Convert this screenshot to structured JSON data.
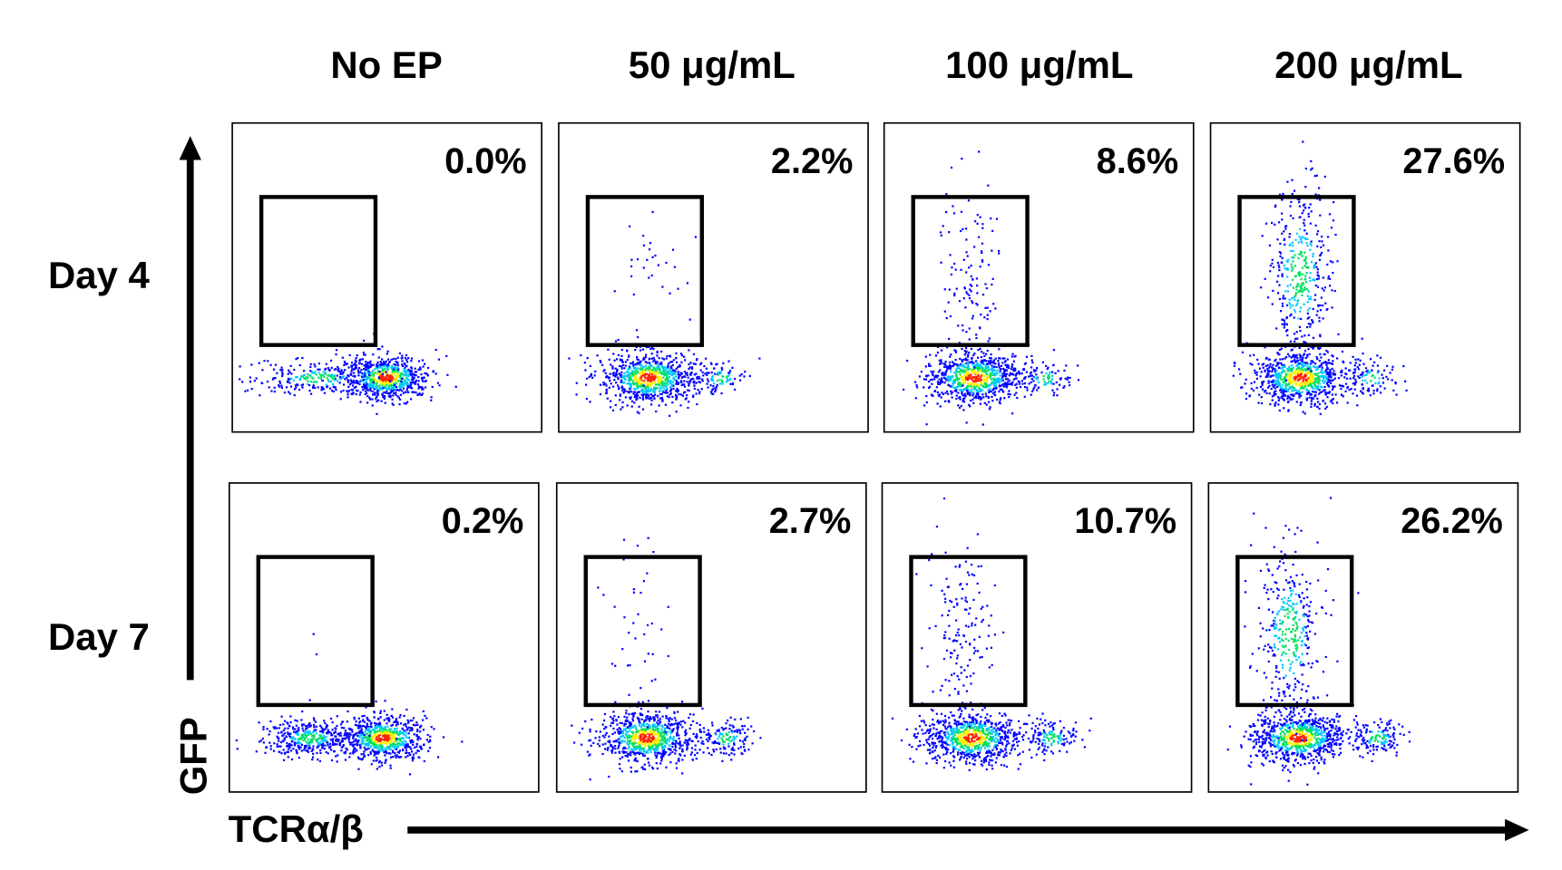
{
  "chart_data": {
    "type": "scatter",
    "subtype": "flow-cytometry-density-dot-plot",
    "xlabel": "TCRα/β",
    "ylabel": "GFP",
    "columns": [
      "No EP",
      "50 μg/mL",
      "100 μg/mL",
      "200 μg/mL"
    ],
    "rows": [
      "Day 4",
      "Day 7"
    ],
    "panels": [
      {
        "row": "Day 4",
        "column": "No EP",
        "gated_percent": 0.0,
        "label": "0.0%"
      },
      {
        "row": "Day 4",
        "column": "50 μg/mL",
        "gated_percent": 2.2,
        "label": "2.2%"
      },
      {
        "row": "Day 4",
        "column": "100 μg/mL",
        "gated_percent": 8.6,
        "label": "8.6%"
      },
      {
        "row": "Day 4",
        "column": "200 μg/mL",
        "gated_percent": 27.6,
        "label": "27.6%"
      },
      {
        "row": "Day 7",
        "column": "No EP",
        "gated_percent": 0.2,
        "label": "0.2%"
      },
      {
        "row": "Day 7",
        "column": "50 μg/mL",
        "gated_percent": 2.7,
        "label": "2.7%"
      },
      {
        "row": "Day 7",
        "column": "100 μg/mL",
        "gated_percent": 10.7,
        "label": "10.7%"
      },
      {
        "row": "Day 7",
        "column": "200 μg/mL",
        "gated_percent": 26.2,
        "label": "26.2%"
      }
    ],
    "density_colors": [
      "#0000ff",
      "#00c8ff",
      "#00e060",
      "#ffee00",
      "#ff2000"
    ]
  }
}
